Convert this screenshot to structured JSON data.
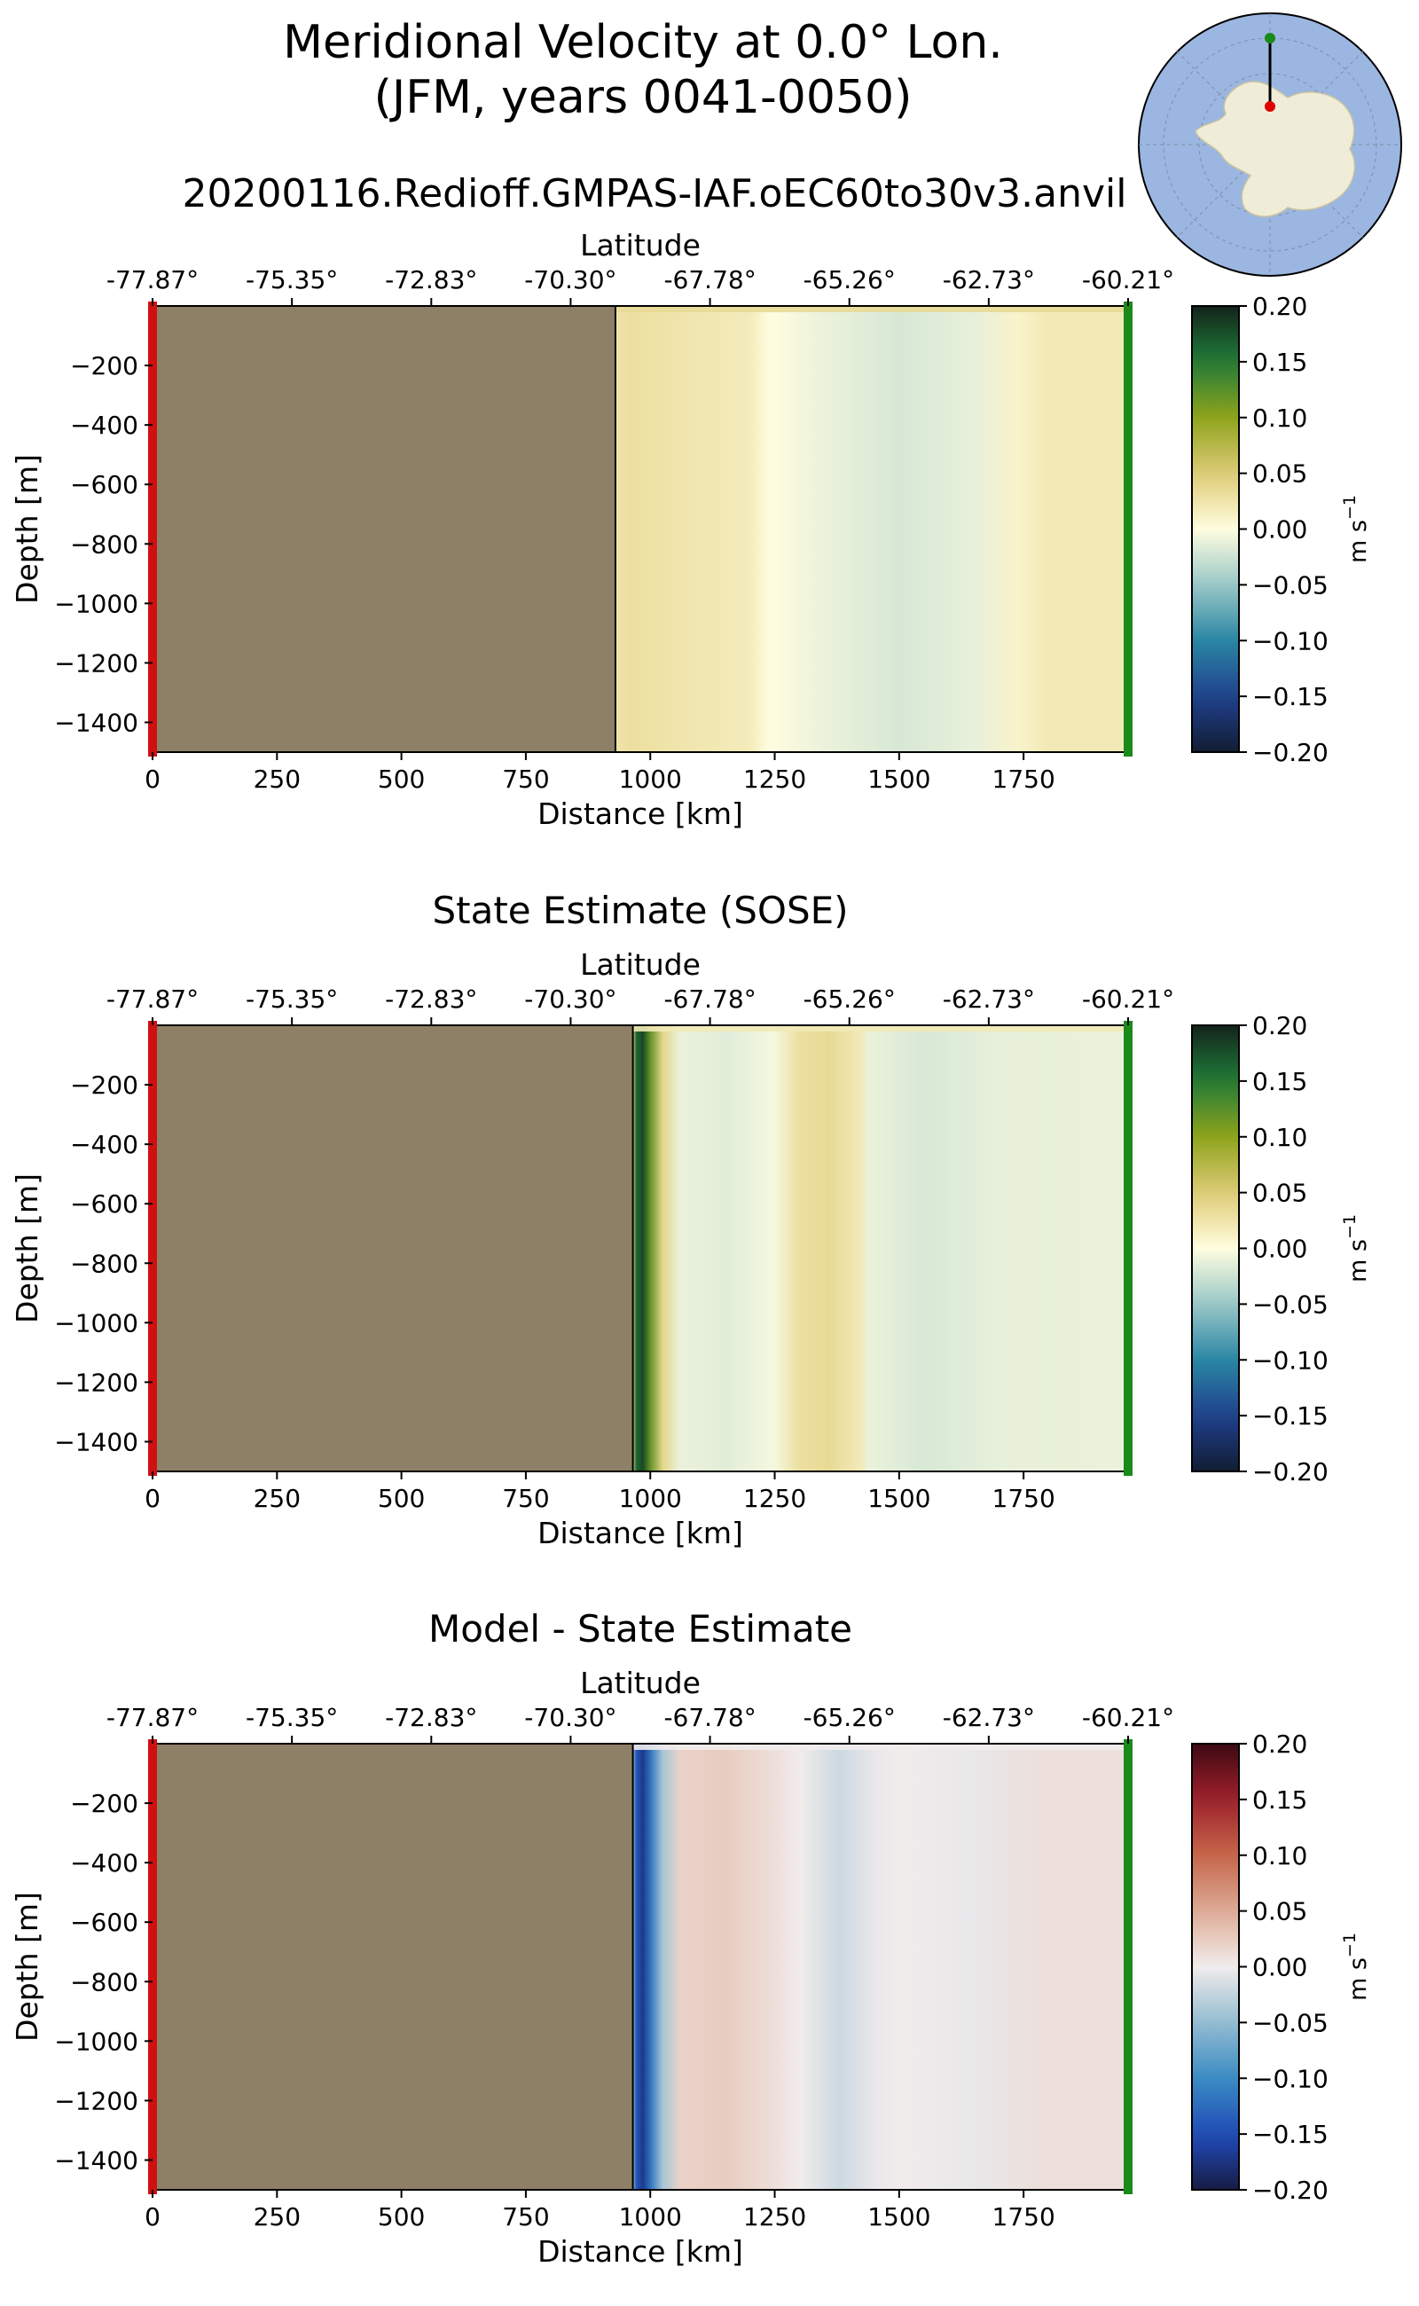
{
  "figure": {
    "title_line1": "Meridional Velocity at 0.0° Lon.",
    "title_line2": "(JFM, years 0041-0050)",
    "subtitle": "20200116.Redioff.GMPAS-IAF.oEC60to30v3.anvil",
    "inset_map": "antarctica-polar-map-with-transect"
  },
  "chart_data": [
    {
      "type": "heatmap",
      "title": "",
      "xlabel": "Distance [km]",
      "ylabel": "Depth [m]",
      "top_xlabel": "Latitude",
      "xlim": [
        0,
        1960
      ],
      "ylim": [
        -1500,
        0
      ],
      "xticks": [
        0,
        250,
        500,
        750,
        1000,
        1250,
        1500,
        1750
      ],
      "yticks": [
        -200,
        -400,
        -600,
        -800,
        -1000,
        -1200,
        -1400
      ],
      "lat_ticks": [
        "-77.87°",
        "-75.35°",
        "-72.83°",
        "-70.30°",
        "-67.78°",
        "-65.26°",
        "-62.73°",
        "-60.21°"
      ],
      "lat_positions_km": [
        0,
        280,
        560,
        840,
        1120,
        1400,
        1680,
        1960
      ],
      "land_end_km": 930,
      "colormap": "delta",
      "colorbar": {
        "label": "m s",
        "label_sup": "−1",
        "ticks": [
          "0.20",
          "0.15",
          "0.10",
          "0.05",
          "0.00",
          "−0.05",
          "−0.10",
          "−0.15",
          "−0.20"
        ],
        "vmin": -0.2,
        "vmax": 0.2
      },
      "profile": {
        "x": [
          930,
          960,
          1100,
          1200,
          1240,
          1350,
          1500,
          1650,
          1740,
          1800,
          1960
        ],
        "values": [
          0.025,
          0.03,
          0.022,
          0.018,
          0.0,
          -0.01,
          -0.02,
          -0.012,
          0.01,
          0.02,
          0.02
        ]
      },
      "surface_value": 0.035
    },
    {
      "type": "heatmap",
      "title": "State Estimate (SOSE)",
      "xlabel": "Distance [km]",
      "ylabel": "Depth [m]",
      "top_xlabel": "Latitude",
      "xlim": [
        0,
        1960
      ],
      "ylim": [
        -1500,
        0
      ],
      "xticks": [
        0,
        250,
        500,
        750,
        1000,
        1250,
        1500,
        1750
      ],
      "yticks": [
        -200,
        -400,
        -600,
        -800,
        -1000,
        -1200,
        -1400
      ],
      "lat_ticks": [
        "-77.87°",
        "-75.35°",
        "-72.83°",
        "-70.30°",
        "-67.78°",
        "-65.26°",
        "-62.73°",
        "-60.21°"
      ],
      "lat_positions_km": [
        0,
        280,
        560,
        840,
        1120,
        1400,
        1680,
        1960
      ],
      "land_end_km": 965,
      "colormap": "delta",
      "colorbar": {
        "label": "m s",
        "label_sup": "−1",
        "ticks": [
          "0.20",
          "0.15",
          "0.10",
          "0.05",
          "0.00",
          "−0.05",
          "−0.10",
          "−0.15",
          "−0.20"
        ],
        "vmin": -0.2,
        "vmax": 0.2
      },
      "profile": {
        "x": [
          965,
          972,
          985,
          1000,
          1025,
          1060,
          1150,
          1250,
          1300,
          1360,
          1420,
          1440,
          1550,
          1700,
          1960
        ],
        "values": [
          0.05,
          0.16,
          0.18,
          0.12,
          0.04,
          -0.01,
          -0.015,
          -0.005,
          0.03,
          0.035,
          0.02,
          -0.01,
          -0.02,
          -0.012,
          -0.01
        ]
      },
      "surface_value": 0.02
    },
    {
      "type": "heatmap",
      "title": "Model - State Estimate",
      "xlabel": "Distance [km]",
      "ylabel": "Depth [m]",
      "top_xlabel": "Latitude",
      "xlim": [
        0,
        1960
      ],
      "ylim": [
        -1500,
        0
      ],
      "xticks": [
        0,
        250,
        500,
        750,
        1000,
        1250,
        1500,
        1750
      ],
      "yticks": [
        -200,
        -400,
        -600,
        -800,
        -1000,
        -1200,
        -1400
      ],
      "lat_ticks": [
        "-77.87°",
        "-75.35°",
        "-72.83°",
        "-70.30°",
        "-67.78°",
        "-65.26°",
        "-62.73°",
        "-60.21°"
      ],
      "lat_positions_km": [
        0,
        280,
        560,
        840,
        1120,
        1400,
        1680,
        1960
      ],
      "land_end_km": 965,
      "colormap": "balance",
      "colorbar": {
        "label": "m s",
        "label_sup": "−1",
        "ticks": [
          "0.20",
          "0.15",
          "0.10",
          "0.05",
          "0.00",
          "−0.05",
          "−0.10",
          "−0.15",
          "−0.20"
        ],
        "vmin": -0.2,
        "vmax": 0.2
      },
      "profile": {
        "x": [
          965,
          972,
          985,
          1000,
          1025,
          1060,
          1150,
          1250,
          1300,
          1380,
          1450,
          1500,
          1650,
          1800,
          1960
        ],
        "values": [
          -0.05,
          -0.14,
          -0.17,
          -0.12,
          -0.04,
          0.02,
          0.025,
          0.01,
          0.0,
          -0.02,
          -0.005,
          0.0,
          -0.005,
          0.01,
          0.01
        ]
      },
      "surface_value": 0.0
    }
  ]
}
